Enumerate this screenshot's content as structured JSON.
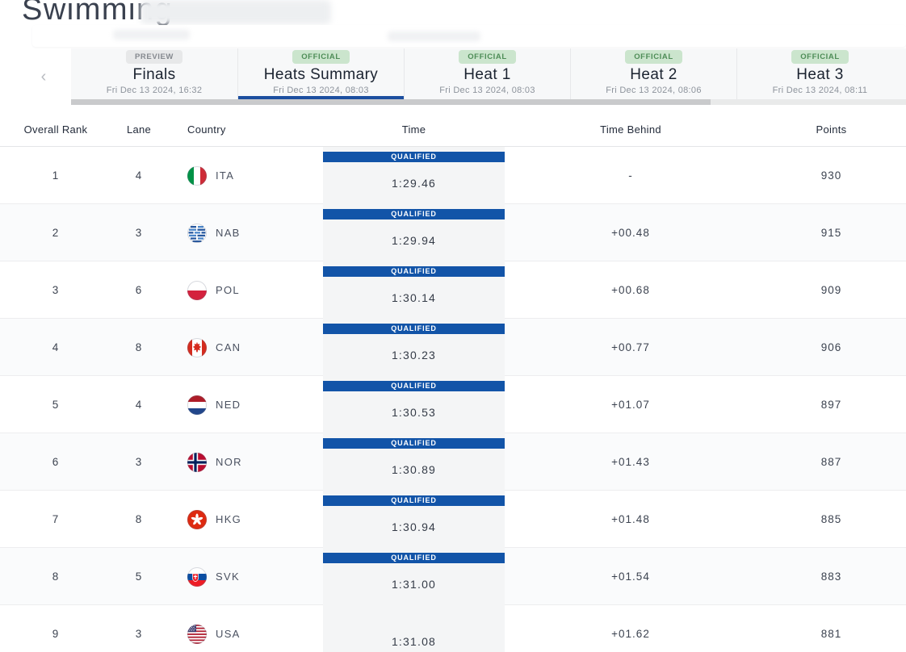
{
  "page": {
    "title": "Swimming"
  },
  "tabs_nav": {
    "scroll_left_icon": "‹"
  },
  "tabs": [
    {
      "status_badge": "PREVIEW",
      "badge_style": "preview",
      "label": "Finals",
      "date": "Fri Dec 13 2024, 16:32",
      "active": false
    },
    {
      "status_badge": "OFFICIAL",
      "badge_style": "official",
      "label": "Heats Summary",
      "date": "Fri Dec 13 2024, 08:03",
      "active": true
    },
    {
      "status_badge": "OFFICIAL",
      "badge_style": "official",
      "label": "Heat 1",
      "date": "Fri Dec 13 2024, 08:03",
      "active": false
    },
    {
      "status_badge": "OFFICIAL",
      "badge_style": "official",
      "label": "Heat 2",
      "date": "Fri Dec 13 2024, 08:06",
      "active": false
    },
    {
      "status_badge": "OFFICIAL",
      "badge_style": "official",
      "label": "Heat 3",
      "date": "Fri Dec 13 2024, 08:11",
      "active": false
    }
  ],
  "table": {
    "columns": [
      "Overall Rank",
      "Lane",
      "Country",
      "Time",
      "Time Behind",
      "Points"
    ],
    "rows": [
      {
        "rank": "1",
        "lane": "4",
        "country": "ITA",
        "flag_icon": "flag-ita-icon",
        "status": "QUALIFIED",
        "time": "1:29.46",
        "time_behind": "-",
        "points": "930"
      },
      {
        "rank": "2",
        "lane": "3",
        "country": "NAB",
        "flag_icon": "flag-nab-icon",
        "status": "QUALIFIED",
        "time": "1:29.94",
        "time_behind": "+00.48",
        "points": "915"
      },
      {
        "rank": "3",
        "lane": "6",
        "country": "POL",
        "flag_icon": "flag-pol-icon",
        "status": "QUALIFIED",
        "time": "1:30.14",
        "time_behind": "+00.68",
        "points": "909"
      },
      {
        "rank": "4",
        "lane": "8",
        "country": "CAN",
        "flag_icon": "flag-can-icon",
        "status": "QUALIFIED",
        "time": "1:30.23",
        "time_behind": "+00.77",
        "points": "906"
      },
      {
        "rank": "5",
        "lane": "4",
        "country": "NED",
        "flag_icon": "flag-ned-icon",
        "status": "QUALIFIED",
        "time": "1:30.53",
        "time_behind": "+01.07",
        "points": "897"
      },
      {
        "rank": "6",
        "lane": "3",
        "country": "NOR",
        "flag_icon": "flag-nor-icon",
        "status": "QUALIFIED",
        "time": "1:30.89",
        "time_behind": "+01.43",
        "points": "887"
      },
      {
        "rank": "7",
        "lane": "8",
        "country": "HKG",
        "flag_icon": "flag-hkg-icon",
        "status": "QUALIFIED",
        "time": "1:30.94",
        "time_behind": "+01.48",
        "points": "885"
      },
      {
        "rank": "8",
        "lane": "5",
        "country": "SVK",
        "flag_icon": "flag-svk-icon",
        "status": "QUALIFIED",
        "time": "1:31.00",
        "time_behind": "+01.54",
        "points": "883"
      },
      {
        "rank": "9",
        "lane": "3",
        "country": "USA",
        "flag_icon": "flag-usa-icon",
        "status": "",
        "time": "1:31.08",
        "time_behind": "+01.62",
        "points": "881"
      }
    ]
  },
  "colors": {
    "qualified_bar": "#1254a8",
    "active_underline": "#1c4f9f",
    "official_bg": "#cbe5cd",
    "official_text": "#4e8d57",
    "preview_bg": "#e7e8e9",
    "preview_text": "#85898f"
  }
}
